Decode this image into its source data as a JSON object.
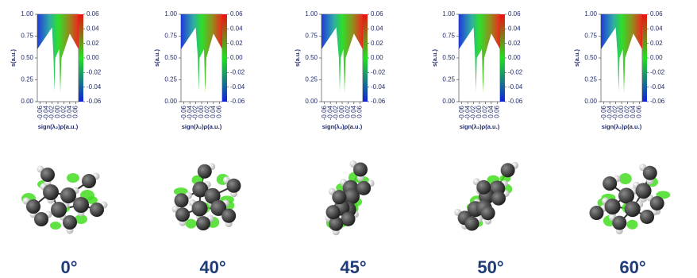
{
  "chart_data": [
    {
      "type": "nci",
      "caption": "0°",
      "xlabel": "sign(λ₂)ρ(a.u.)",
      "ylabel": "s(a.u.)",
      "xlim": [
        -0.07,
        0.07
      ],
      "ylim": [
        0,
        1
      ],
      "xticks": [
        -0.06,
        -0.04,
        -0.02,
        {
          "value": 0,
          "label": "0.00"
        },
        0.02,
        0.04,
        0.06
      ],
      "yticks": [
        {
          "value": 0,
          "label": "0.00"
        },
        {
          "value": 0.25,
          "label": "0.25"
        },
        {
          "value": 0.5,
          "label": "0.50"
        },
        {
          "value": 0.75,
          "label": "0.75"
        },
        {
          "value": 1,
          "label": "1.00"
        }
      ],
      "colorbar_lim": [
        -0.06,
        0.06
      ],
      "colorbar_ticks": [
        0.06,
        0.04,
        0.02,
        {
          "value": 0,
          "label": "0.00"
        },
        -0.02,
        -0.04,
        -0.06
      ]
    },
    {
      "type": "nci",
      "caption": "40°",
      "xlabel": "sign(λ₂)ρ(a.u.)",
      "ylabel": "s(a.u.)",
      "xlim": [
        -0.07,
        0.07
      ],
      "ylim": [
        0,
        1
      ],
      "xticks": [
        -0.06,
        -0.04,
        -0.02,
        {
          "value": 0,
          "label": "0.00"
        },
        0.02,
        0.04,
        0.06
      ],
      "yticks": [
        {
          "value": 0,
          "label": "0.00"
        },
        {
          "value": 0.25,
          "label": "0.25"
        },
        {
          "value": 0.5,
          "label": "0.50"
        },
        {
          "value": 0.75,
          "label": "0.75"
        },
        {
          "value": 1,
          "label": "1.00"
        }
      ],
      "colorbar_lim": [
        -0.06,
        0.06
      ],
      "colorbar_ticks": [
        0.06,
        0.04,
        0.02,
        {
          "value": 0,
          "label": "0.00"
        },
        -0.02,
        -0.04,
        -0.06
      ]
    },
    {
      "type": "nci",
      "caption": "45°",
      "xlabel": "sign(λ₂)ρ(a.u.)",
      "ylabel": "s(a.u.)",
      "xlim": [
        -0.07,
        0.07
      ],
      "ylim": [
        0,
        1
      ],
      "xticks": [
        -0.06,
        -0.04,
        -0.02,
        {
          "value": 0,
          "label": "0.00"
        },
        0.02,
        0.04,
        0.06
      ],
      "yticks": [
        {
          "value": 0,
          "label": "0.00"
        },
        {
          "value": 0.25,
          "label": "0.25"
        },
        {
          "value": 0.5,
          "label": "0.50"
        },
        {
          "value": 0.75,
          "label": "0.75"
        },
        {
          "value": 1,
          "label": "1.00"
        }
      ],
      "colorbar_lim": [
        -0.06,
        0.06
      ],
      "colorbar_ticks": [
        0.06,
        0.04,
        0.02,
        {
          "value": 0,
          "label": "0.00"
        },
        -0.02,
        -0.04,
        -0.06
      ]
    },
    {
      "type": "nci",
      "caption": "50°",
      "xlabel": "sign(λ₂)ρ(a.u.)",
      "ylabel": "s(a.u.)",
      "xlim": [
        -0.07,
        0.07
      ],
      "ylim": [
        0,
        1
      ],
      "xticks": [
        -0.06,
        -0.04,
        -0.02,
        {
          "value": 0,
          "label": "0.00"
        },
        0.02,
        0.04,
        0.06
      ],
      "yticks": [
        {
          "value": 0,
          "label": "0.00"
        },
        {
          "value": 0.25,
          "label": "0.25"
        },
        {
          "value": 0.5,
          "label": "0.50"
        },
        {
          "value": 0.75,
          "label": "0.75"
        },
        {
          "value": 1,
          "label": "1.00"
        }
      ],
      "colorbar_lim": [
        -0.06,
        0.06
      ],
      "colorbar_ticks": [
        0.06,
        0.04,
        0.02,
        {
          "value": 0,
          "label": "0.00"
        },
        -0.02,
        -0.04,
        -0.06
      ]
    },
    {
      "type": "nci",
      "caption": "60°",
      "xlabel": "sign(λ₂)ρ(a.u.)",
      "ylabel": "s(a.u.)",
      "xlim": [
        -0.07,
        0.07
      ],
      "ylim": [
        0,
        1
      ],
      "xticks": [
        -0.06,
        -0.04,
        -0.02,
        {
          "value": 0,
          "label": "0.00"
        },
        0.02,
        0.04,
        0.06
      ],
      "yticks": [
        {
          "value": 0,
          "label": "0.00"
        },
        {
          "value": 0.25,
          "label": "0.25"
        },
        {
          "value": 0.5,
          "label": "0.50"
        },
        {
          "value": 0.75,
          "label": "0.75"
        },
        {
          "value": 1,
          "label": "1.00"
        }
      ],
      "colorbar_lim": [
        -0.06,
        0.06
      ],
      "colorbar_ticks": [
        0.06,
        0.04,
        0.02,
        {
          "value": 0,
          "label": "0.00"
        },
        -0.02,
        -0.04,
        -0.06
      ]
    }
  ]
}
